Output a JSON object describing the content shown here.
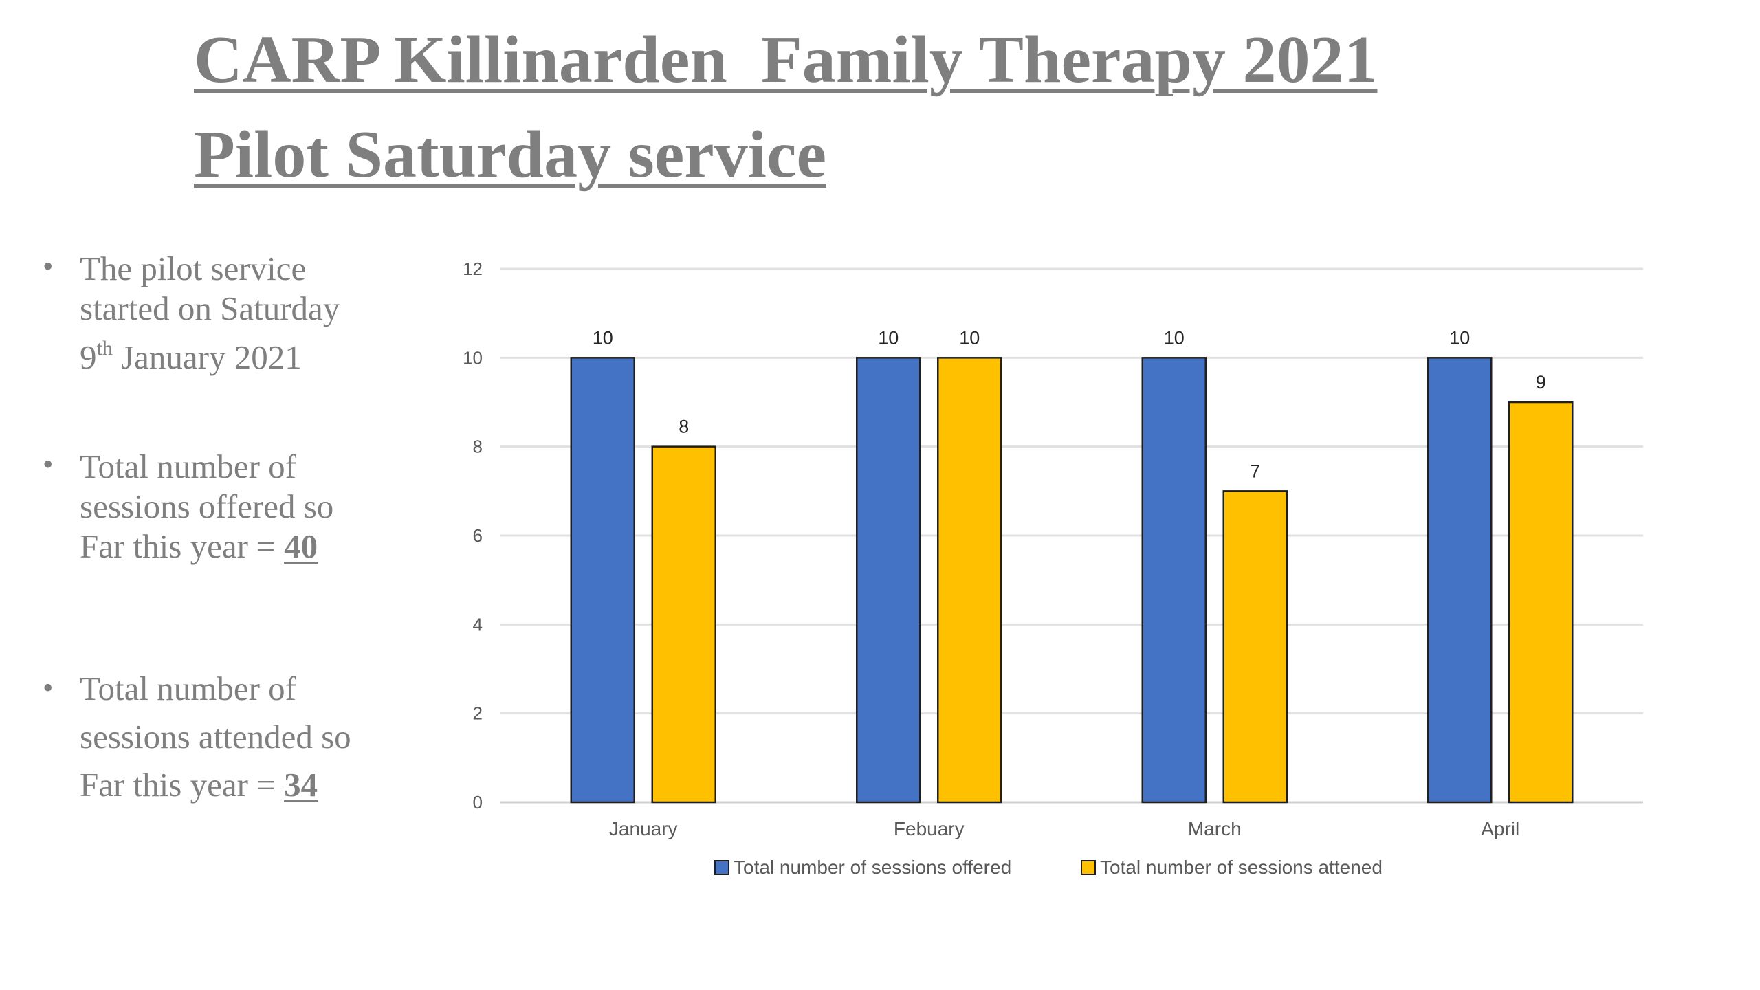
{
  "title": {
    "line1": "CARP Killinarden  Family Therapy 2021",
    "line2": "Pilot Saturday service"
  },
  "bullets": {
    "item1": {
      "line1": "The pilot service",
      "line2": "started on Saturday",
      "line3_pre": "9",
      "line3_sup": "th",
      "line3_post": " January 2021"
    },
    "item2": {
      "line1": "Total number of",
      "line2": "sessions offered so",
      "line3_pre": "Far this year = ",
      "value": "40"
    },
    "item3": {
      "line1": "Total number of",
      "line2": "sessions attended so",
      "line3_pre": "Far this year = ",
      "value": "34"
    }
  },
  "colors": {
    "offered": "#4472c4",
    "attended": "#ffc000",
    "text_gray": "#7f7f7f",
    "grid": "#e0e0e0",
    "axis_text": "#595959"
  },
  "chart_data": {
    "type": "bar",
    "categories": [
      "January",
      "Febuary",
      "March",
      "April"
    ],
    "series": [
      {
        "name": "Total number of sessions offered",
        "values": [
          10,
          10,
          10,
          10
        ]
      },
      {
        "name": "Total number of sessions attened",
        "values": [
          8,
          10,
          7,
          9
        ]
      }
    ],
    "ylim": [
      0,
      12
    ],
    "yticks": [
      0,
      2,
      4,
      6,
      8,
      10,
      12
    ],
    "grid": true,
    "legend_position": "bottom",
    "data_labels": true
  }
}
